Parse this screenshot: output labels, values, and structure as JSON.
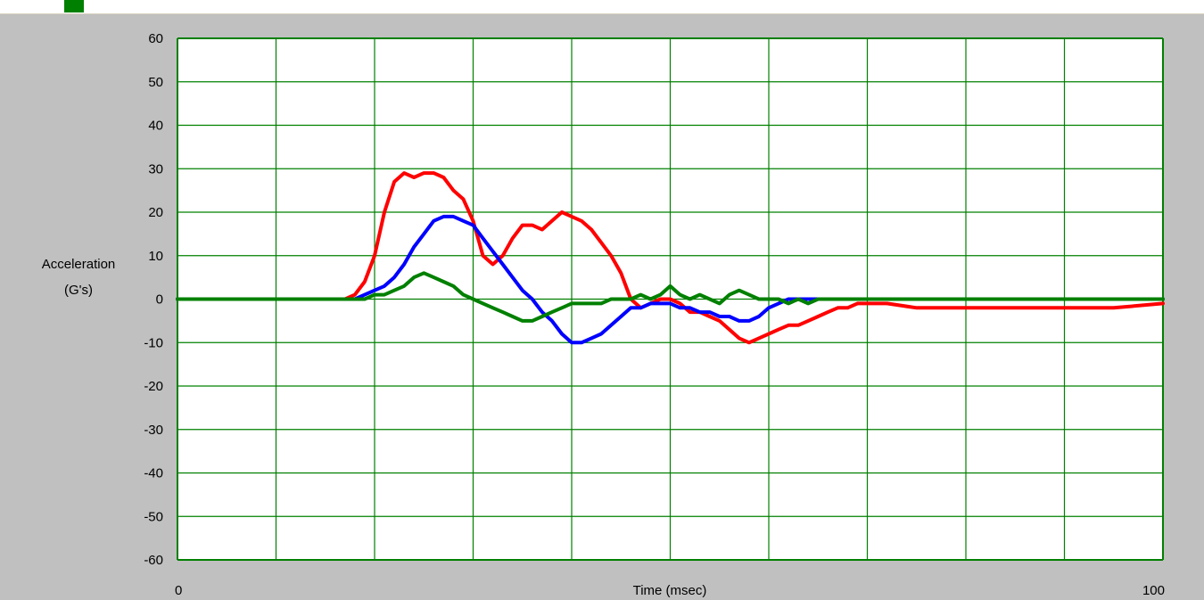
{
  "colors": {
    "background": "#c0c0c0",
    "plot_bg": "#ffffff",
    "grid": "#008000",
    "series_red": "#ff0000",
    "series_blue": "#0000ff",
    "series_green": "#008000"
  },
  "chart_data": {
    "type": "line",
    "title": "",
    "xlabel": "Time (msec)",
    "ylabel_line1": "Acceleration",
    "ylabel_line2": "(G's)",
    "xlim": [
      0,
      100
    ],
    "ylim": [
      -60,
      60
    ],
    "x_tick_labels": [
      "0",
      "100"
    ],
    "y_ticks": [
      60,
      50,
      40,
      30,
      20,
      10,
      0,
      -10,
      -20,
      -30,
      -40,
      -50,
      -60
    ],
    "x_gridlines": 10,
    "grid": true,
    "legend": "none",
    "series": [
      {
        "color": "#ff0000",
        "x": [
          0,
          17,
          18,
          19,
          20,
          21,
          22,
          23,
          24,
          25,
          26,
          27,
          28,
          29,
          30,
          31,
          32,
          33,
          34,
          35,
          36,
          37,
          38,
          39,
          40,
          41,
          42,
          43,
          44,
          45,
          46,
          47,
          48,
          49,
          50,
          51,
          52,
          53,
          54,
          55,
          56,
          57,
          58,
          59,
          60,
          61,
          62,
          63,
          64,
          65,
          66,
          67,
          68,
          69,
          70,
          72,
          75,
          78,
          80,
          85,
          90,
          95,
          100
        ],
        "y": [
          0,
          0,
          1,
          4,
          10,
          20,
          27,
          29,
          28,
          29,
          29,
          28,
          25,
          23,
          18,
          10,
          8,
          10,
          14,
          17,
          17,
          16,
          18,
          20,
          19,
          18,
          16,
          13,
          10,
          6,
          0,
          -2,
          -1,
          0,
          0,
          -1,
          -3,
          -3,
          -4,
          -5,
          -7,
          -9,
          -10,
          -9,
          -8,
          -7,
          -6,
          -6,
          -5,
          -4,
          -3,
          -2,
          -2,
          -1,
          -1,
          -1,
          -2,
          -2,
          -2,
          -2,
          -2,
          -2,
          -1
        ]
      },
      {
        "color": "#0000ff",
        "x": [
          0,
          18,
          19,
          20,
          21,
          22,
          23,
          24,
          25,
          26,
          27,
          28,
          29,
          30,
          31,
          32,
          33,
          34,
          35,
          36,
          37,
          38,
          39,
          40,
          41,
          42,
          43,
          44,
          45,
          46,
          47,
          48,
          49,
          50,
          51,
          52,
          53,
          54,
          55,
          56,
          57,
          58,
          59,
          60,
          61,
          62,
          63,
          64,
          65,
          66,
          67,
          68,
          70,
          75,
          80,
          90,
          100
        ],
        "y": [
          0,
          0,
          1,
          2,
          3,
          5,
          8,
          12,
          15,
          18,
          19,
          19,
          18,
          17,
          14,
          11,
          8,
          5,
          2,
          0,
          -3,
          -5,
          -8,
          -10,
          -10,
          -9,
          -8,
          -6,
          -4,
          -2,
          -2,
          -1,
          -1,
          -1,
          -2,
          -2,
          -3,
          -3,
          -4,
          -4,
          -5,
          -5,
          -4,
          -2,
          -1,
          0,
          0,
          0,
          0,
          0,
          0,
          0,
          0,
          0,
          0,
          0,
          0
        ]
      },
      {
        "color": "#008000",
        "x": [
          0,
          19,
          20,
          21,
          22,
          23,
          24,
          25,
          26,
          27,
          28,
          29,
          30,
          31,
          32,
          33,
          34,
          35,
          36,
          37,
          38,
          39,
          40,
          41,
          42,
          43,
          44,
          45,
          46,
          47,
          48,
          49,
          50,
          51,
          52,
          53,
          54,
          55,
          56,
          57,
          58,
          59,
          60,
          61,
          62,
          63,
          64,
          65,
          66,
          67,
          68,
          70,
          75,
          80,
          90,
          100
        ],
        "y": [
          0,
          0,
          1,
          1,
          2,
          3,
          5,
          6,
          5,
          4,
          3,
          1,
          0,
          -1,
          -2,
          -3,
          -4,
          -5,
          -5,
          -4,
          -3,
          -2,
          -1,
          -1,
          -1,
          -1,
          0,
          0,
          0,
          1,
          0,
          1,
          3,
          1,
          0,
          1,
          0,
          -1,
          1,
          2,
          1,
          0,
          0,
          0,
          -1,
          0,
          -1,
          0,
          0,
          0,
          0,
          0,
          0,
          0,
          0,
          0
        ]
      }
    ]
  }
}
